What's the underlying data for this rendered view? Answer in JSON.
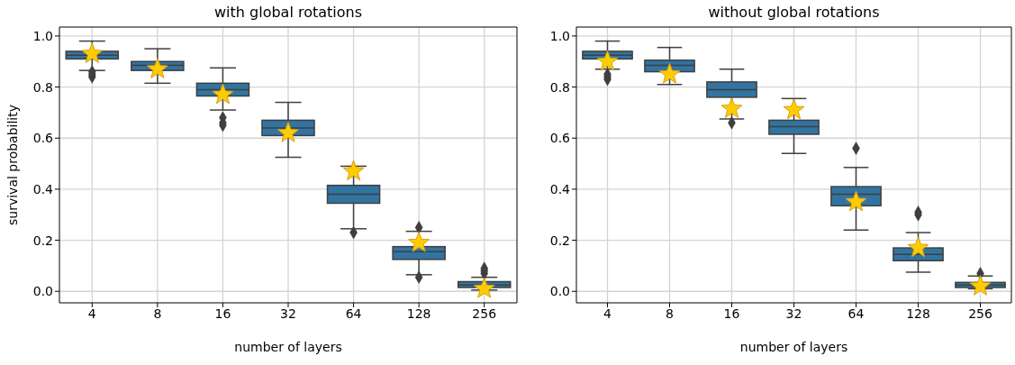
{
  "chart_data": [
    {
      "type": "box",
      "title": "with global rotations",
      "xlabel": "number of layers",
      "ylabel": "survival probability",
      "categories": [
        "4",
        "8",
        "16",
        "32",
        "64",
        "128",
        "256"
      ],
      "ylim": [
        -0.045,
        1.035
      ],
      "yticks": [
        {
          "value": 0,
          "label": "0.0"
        },
        {
          "value": 0.2,
          "label": "0.2"
        },
        {
          "value": 0.4,
          "label": "0.4"
        },
        {
          "value": 0.6,
          "label": "0.6"
        },
        {
          "value": 0.8,
          "label": "0.8"
        },
        {
          "value": 1,
          "label": "1.0"
        }
      ],
      "grid": true,
      "series": [
        {
          "color": "#3274a1",
          "boxes": [
            {
              "low": 0.865,
              "q1": 0.91,
              "median": 0.925,
              "q3": 0.94,
              "high": 0.98,
              "outliers": [
                0.84,
                0.85,
                0.86
              ]
            },
            {
              "low": 0.815,
              "q1": 0.865,
              "median": 0.885,
              "q3": 0.9,
              "high": 0.95
            },
            {
              "low": 0.71,
              "q1": 0.765,
              "median": 0.79,
              "q3": 0.815,
              "high": 0.875,
              "outliers": [
                0.65,
                0.66,
                0.68
              ]
            },
            {
              "low": 0.525,
              "q1": 0.61,
              "median": 0.64,
              "q3": 0.67,
              "high": 0.74
            },
            {
              "low": 0.245,
              "q1": 0.345,
              "median": 0.38,
              "q3": 0.415,
              "high": 0.49,
              "outliers": [
                0.23
              ]
            },
            {
              "low": 0.065,
              "q1": 0.125,
              "median": 0.155,
              "q3": 0.175,
              "high": 0.235,
              "outliers": [
                0.055,
                0.25
              ]
            },
            {
              "low": 0.005,
              "q1": 0.015,
              "median": 0.025,
              "q3": 0.038,
              "high": 0.055,
              "outliers": [
                0.07,
                0.08,
                0.09
              ]
            }
          ]
        },
        {
          "type": "scatter",
          "marker": "star",
          "color": "#ffcc00",
          "x": [
            "4",
            "8",
            "16",
            "32",
            "64",
            "128",
            "256"
          ],
          "values": [
            0.93,
            0.87,
            0.77,
            0.62,
            0.47,
            0.19,
            0.01
          ]
        }
      ]
    },
    {
      "type": "box",
      "title": "without global rotations",
      "xlabel": "number of layers",
      "categories": [
        "4",
        "8",
        "16",
        "32",
        "64",
        "128",
        "256"
      ],
      "ylim": [
        -0.045,
        1.035
      ],
      "yticks": [
        {
          "value": 0,
          "label": "0.0"
        },
        {
          "value": 0.2,
          "label": "0.2"
        },
        {
          "value": 0.4,
          "label": "0.4"
        },
        {
          "value": 0.6,
          "label": "0.6"
        },
        {
          "value": 0.8,
          "label": "0.8"
        },
        {
          "value": 1,
          "label": "1.0"
        }
      ],
      "grid": true,
      "series": [
        {
          "color": "#3274a1",
          "boxes": [
            {
              "low": 0.87,
              "q1": 0.91,
              "median": 0.925,
              "q3": 0.94,
              "high": 0.98,
              "outliers": [
                0.83,
                0.84,
                0.85
              ]
            },
            {
              "low": 0.81,
              "q1": 0.86,
              "median": 0.885,
              "q3": 0.905,
              "high": 0.955
            },
            {
              "low": 0.675,
              "q1": 0.76,
              "median": 0.79,
              "q3": 0.82,
              "high": 0.87,
              "outliers": [
                0.66
              ]
            },
            {
              "low": 0.54,
              "q1": 0.615,
              "median": 0.645,
              "q3": 0.67,
              "high": 0.755
            },
            {
              "low": 0.24,
              "q1": 0.335,
              "median": 0.38,
              "q3": 0.41,
              "high": 0.485,
              "outliers": [
                0.56
              ]
            },
            {
              "low": 0.075,
              "q1": 0.12,
              "median": 0.145,
              "q3": 0.17,
              "high": 0.23,
              "outliers": [
                0.3,
                0.31
              ]
            },
            {
              "low": 0.01,
              "q1": 0.015,
              "median": 0.025,
              "q3": 0.035,
              "high": 0.06,
              "outliers": [
                0.07
              ]
            }
          ]
        },
        {
          "type": "scatter",
          "marker": "star",
          "color": "#ffcc00",
          "x": [
            "4",
            "8",
            "16",
            "32",
            "64",
            "128",
            "256"
          ],
          "values": [
            0.9,
            0.85,
            0.715,
            0.71,
            0.35,
            0.17,
            0.02
          ]
        }
      ]
    }
  ]
}
